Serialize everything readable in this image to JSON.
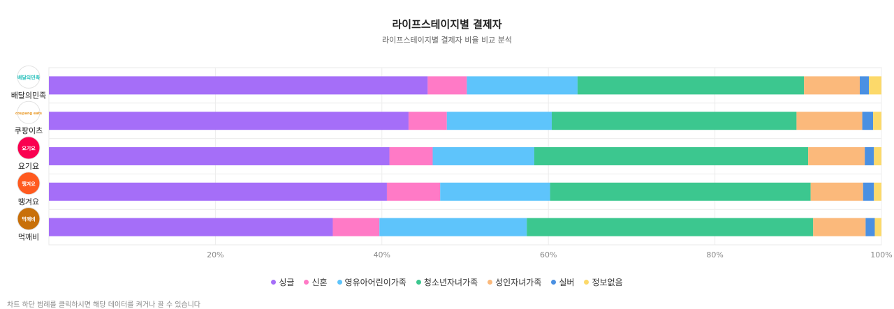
{
  "chart_data": {
    "type": "bar",
    "orientation": "horizontal",
    "stacked": true,
    "title": "라이프스테이지별 결제자",
    "subtitle": "라이프스테이지별 결제자 비율 비교 분석",
    "categories": [
      "배달의민족",
      "쿠팡이츠",
      "요기요",
      "땡겨요",
      "먹깨비"
    ],
    "category_logos": [
      {
        "name": "baemin-logo",
        "text": "배달의민족",
        "bg": "#ffffff",
        "fg": "#2ac1bc"
      },
      {
        "name": "coupang-eats-logo",
        "text": "coupang eats",
        "bg": "#ffffff",
        "fg": "#e99a2a"
      },
      {
        "name": "yogiyo-logo",
        "text": "요기요",
        "bg": "#fa0050",
        "fg": "#ffffff"
      },
      {
        "name": "ddangyo-logo",
        "text": "땡겨요",
        "bg": "#ff5a1f",
        "fg": "#ffffff"
      },
      {
        "name": "mukkebi-logo",
        "text": "먹깨비",
        "bg": "#c8700a",
        "fg": "#ffffff"
      }
    ],
    "series": [
      {
        "name": "싱글",
        "color": "#a56ef8",
        "values": [
          45.5,
          43.2,
          40.9,
          40.6,
          34.1
        ]
      },
      {
        "name": "신혼",
        "color": "#ff7ac6",
        "values": [
          4.7,
          4.6,
          5.2,
          6.4,
          5.6
        ]
      },
      {
        "name": "영유아어린이가족",
        "color": "#5ec4fb",
        "values": [
          13.3,
          12.6,
          12.2,
          13.2,
          17.7
        ]
      },
      {
        "name": "청소년자녀가족",
        "color": "#3cc78f",
        "values": [
          27.2,
          29.4,
          32.9,
          31.3,
          34.4
        ]
      },
      {
        "name": "성인자녀가족",
        "color": "#fbb97b",
        "values": [
          6.7,
          7.9,
          6.8,
          6.3,
          6.3
        ]
      },
      {
        "name": "실버",
        "color": "#4a90e2",
        "values": [
          1.1,
          1.3,
          1.1,
          1.3,
          1.1
        ]
      },
      {
        "name": "정보없음",
        "color": "#fcd96a",
        "values": [
          1.5,
          1.0,
          0.9,
          0.9,
          0.8
        ]
      }
    ],
    "xlim": [
      0,
      100
    ],
    "xticks": [
      "20%",
      "40%",
      "60%",
      "80%",
      "100%"
    ],
    "xtick_values": [
      20,
      40,
      60,
      80,
      100
    ],
    "grid": true,
    "legend_position": "bottom"
  },
  "footnote": "차트 하단 범례를 클릭하시면 해당 데이터를 켜거나 끌 수 있습니다"
}
